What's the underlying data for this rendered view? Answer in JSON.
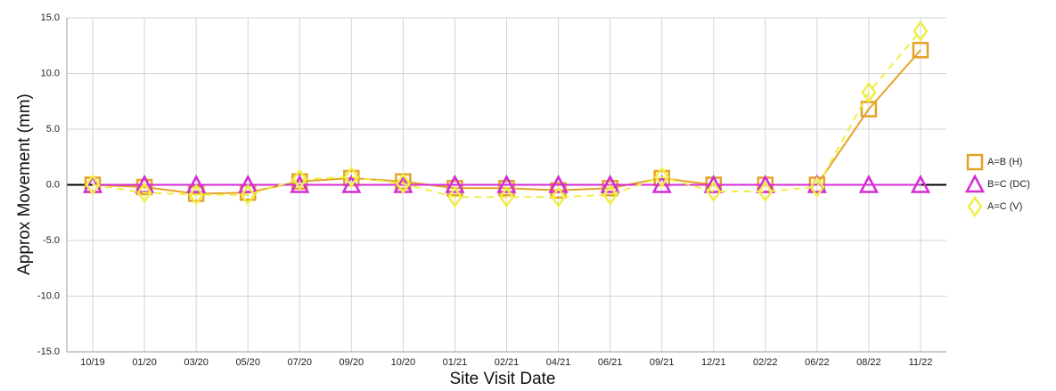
{
  "chart_data": {
    "type": "line",
    "y_label": "Approx Movement (mm)",
    "x_label": "Site Visit Date",
    "categories": [
      "10/19",
      "01/20",
      "03/20",
      "05/20",
      "07/20",
      "09/20",
      "10/20",
      "01/21",
      "02/21",
      "04/21",
      "06/21",
      "09/21",
      "12/21",
      "02/22",
      "06/22",
      "08/22",
      "11/22"
    ],
    "series": [
      {
        "name": "A=B (H)",
        "color": "#e3a326",
        "marker": "square",
        "dash": false,
        "values": [
          0,
          -0.2,
          -0.8,
          -0.7,
          0.3,
          0.6,
          0.3,
          -0.3,
          -0.3,
          -0.5,
          -0.3,
          0.6,
          0,
          0,
          0,
          6.8,
          12.1
        ]
      },
      {
        "name": "B=C (DC)",
        "color": "#d42bd4",
        "marker": "triangle",
        "dash": false,
        "values": [
          0,
          0,
          0,
          0,
          0,
          0,
          0,
          0,
          0,
          0,
          0,
          0,
          0,
          0,
          0,
          0,
          0
        ]
      },
      {
        "name": "A=C (V)",
        "color": "#f0ee45",
        "marker": "diamond",
        "dash": true,
        "values": [
          0,
          -0.7,
          -0.9,
          -0.9,
          0.5,
          0.7,
          0.1,
          -1.1,
          -1.1,
          -1.1,
          -0.9,
          0.7,
          -0.6,
          -0.6,
          -0.2,
          8.3,
          13.8
        ]
      }
    ],
    "ylim": [
      -15,
      15
    ],
    "yticks": [
      {
        "value": -15,
        "label": "-15.0"
      },
      {
        "value": -10,
        "label": "-10.0"
      },
      {
        "value": -5,
        "label": "-5.0"
      },
      {
        "value": 0,
        "label": "0.0"
      },
      {
        "value": 5,
        "label": "5.0"
      },
      {
        "value": 10,
        "label": "10.0"
      },
      {
        "value": 15,
        "label": "15.0"
      }
    ],
    "grid": true,
    "legend": "right"
  }
}
